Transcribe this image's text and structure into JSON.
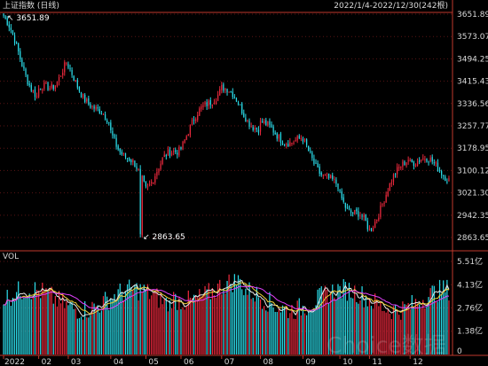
{
  "header": {
    "title": "上证指数 (日线)",
    "range": "2022/1/4-2022/12/30(242根)"
  },
  "colors": {
    "up": "#e8283c",
    "down": "#2ad9e6",
    "axis": "#c0392b",
    "text": "#d8d8d8",
    "ma_white": "#e8e8e8",
    "ma_yellow": "#f2d23a",
    "ma_magenta": "#e040fb"
  },
  "watermark": "Choice数据",
  "chart_data": {
    "type": "candlestick",
    "title": "上证指数 (日线)",
    "date_range": "2022/1/4-2022/12/30",
    "bar_count": 242,
    "price_axis": {
      "ticks": [
        "3651.89",
        "3573.07",
        "3494.25",
        "3415.43",
        "3336.56",
        "3257.77",
        "3178.95",
        "3100.12",
        "3021.30",
        "2942.35",
        "2863.65"
      ],
      "range": [
        2863.65,
        3651.89
      ]
    },
    "annotations": {
      "high": {
        "label": "3651.89",
        "value": 3651.89,
        "date": "2022-01-04"
      },
      "low": {
        "label": "2863.65",
        "value": 2863.65,
        "date": "2022-04-27"
      }
    },
    "volume_axis": {
      "label": "VOL",
      "ticks": [
        "5.51亿",
        "4.13亿",
        "2.76亿",
        "1.38亿",
        "0"
      ],
      "range": [
        0,
        5.51
      ]
    },
    "x_axis": {
      "month_labels": [
        "2022",
        "02",
        "03",
        "04",
        "05",
        "06",
        "07",
        "08",
        "09",
        "10",
        "11",
        "12"
      ]
    },
    "monthly_closes": [
      {
        "month": "2022-01",
        "open": 3651.89,
        "close": 3361.44
      },
      {
        "month": "2022-02",
        "open": 3361.44,
        "close": 3462.31
      },
      {
        "month": "2022-03",
        "open": 3462.31,
        "close": 3252.2
      },
      {
        "month": "2022-04",
        "open": 3252.2,
        "close": 3047.06
      },
      {
        "month": "2022-05",
        "open": 3047.06,
        "close": 3186.43
      },
      {
        "month": "2022-06",
        "open": 3186.43,
        "close": 3398.62
      },
      {
        "month": "2022-07",
        "open": 3398.62,
        "close": 3253.24
      },
      {
        "month": "2022-08",
        "open": 3253.24,
        "close": 3202.14
      },
      {
        "month": "2022-09",
        "open": 3202.14,
        "close": 3024.39
      },
      {
        "month": "2022-10",
        "open": 3024.39,
        "close": 2893.48
      },
      {
        "month": "2022-11",
        "open": 2893.48,
        "close": 3151.34
      },
      {
        "month": "2022-12",
        "open": 3151.34,
        "close": 3089.26
      }
    ]
  }
}
